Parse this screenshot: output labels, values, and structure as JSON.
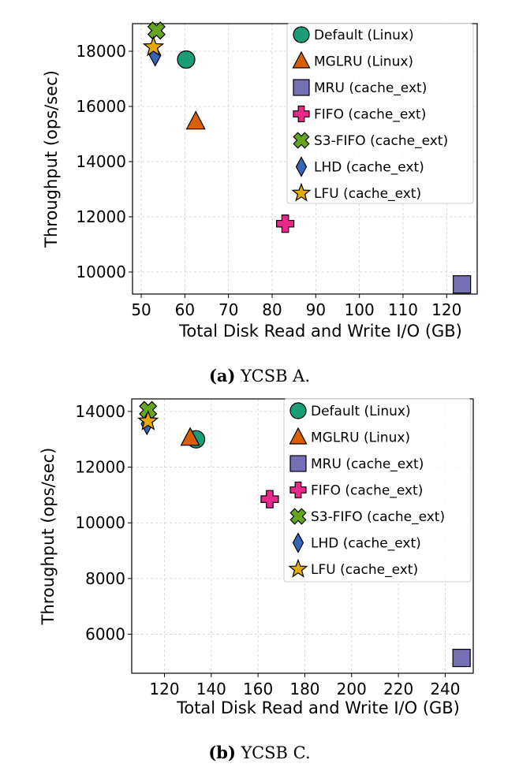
{
  "chart_data": [
    {
      "type": "scatter",
      "caption_label": "(a)",
      "caption_text": "YCSB A.",
      "xlabel": "Total Disk Read and Write I/O (GB)",
      "ylabel": "Throughput (ops/sec)",
      "xlim": [
        48,
        127
      ],
      "ylim": [
        9200,
        19000
      ],
      "xticks": [
        50,
        60,
        70,
        80,
        90,
        100,
        110,
        120
      ],
      "yticks": [
        10000,
        12000,
        14000,
        16000,
        18000
      ],
      "grid": true,
      "legend_position": "top-right",
      "series": [
        {
          "name": "Default (Linux)",
          "marker": "circle",
          "color": "#1b9e77",
          "x": 60.3,
          "y": 17700
        },
        {
          "name": "MGLRU (Linux)",
          "marker": "triangle",
          "color": "#d95f02",
          "x": 62.5,
          "y": 15450
        },
        {
          "name": "MRU (cache_ext)",
          "marker": "square",
          "color": "#7570b3",
          "x": 123.5,
          "y": 9550
        },
        {
          "name": "FIFO (cache_ext)",
          "marker": "plus",
          "color": "#e7298a",
          "x": 83.0,
          "y": 11750
        },
        {
          "name": "S3-FIFO (cache_ext)",
          "marker": "x",
          "color": "#66a61e",
          "x": 53.5,
          "y": 18750
        },
        {
          "name": "LHD (cache_ext)",
          "marker": "diamond",
          "color": "#3565b9",
          "x": 53.2,
          "y": 17850
        },
        {
          "name": "LFU (cache_ext)",
          "marker": "star",
          "color": "#e6ab02",
          "x": 52.8,
          "y": 18150
        }
      ]
    },
    {
      "type": "scatter",
      "caption_label": "(b)",
      "caption_text": "YCSB C.",
      "xlabel": "Total Disk Read and Write I/O (GB)",
      "ylabel": "Throughput (ops/sec)",
      "xlim": [
        106,
        252
      ],
      "ylim": [
        4600,
        14450
      ],
      "xticks": [
        120,
        140,
        160,
        180,
        200,
        220,
        240
      ],
      "yticks": [
        6000,
        8000,
        10000,
        12000,
        14000
      ],
      "grid": true,
      "legend_position": "top-right",
      "series": [
        {
          "name": "Default (Linux)",
          "marker": "circle",
          "color": "#1b9e77",
          "x": 133.5,
          "y": 13000
        },
        {
          "name": "MGLRU (Linux)",
          "marker": "triangle",
          "color": "#d95f02",
          "x": 131.0,
          "y": 13050
        },
        {
          "name": "MRU (cache_ext)",
          "marker": "square",
          "color": "#7570b3",
          "x": 247.0,
          "y": 5150
        },
        {
          "name": "FIFO (cache_ext)",
          "marker": "plus",
          "color": "#e7298a",
          "x": 165.0,
          "y": 10850
        },
        {
          "name": "S3-FIFO (cache_ext)",
          "marker": "x",
          "color": "#66a61e",
          "x": 113.0,
          "y": 14050
        },
        {
          "name": "LHD (cache_ext)",
          "marker": "diamond",
          "color": "#3565b9",
          "x": 112.5,
          "y": 13550
        },
        {
          "name": "LFU (cache_ext)",
          "marker": "star",
          "color": "#e6ab02",
          "x": 113.0,
          "y": 13650
        }
      ]
    }
  ]
}
